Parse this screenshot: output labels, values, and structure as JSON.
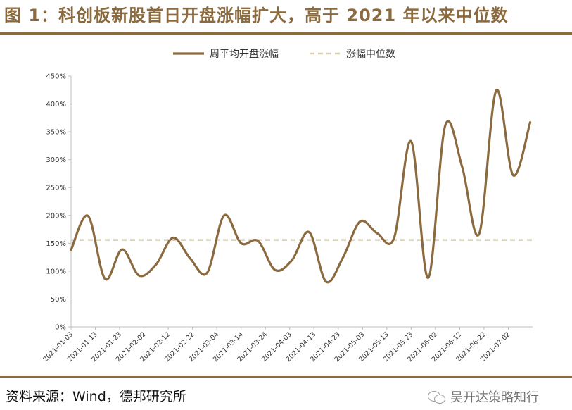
{
  "page": {
    "title": "图 1：科创板新股首日开盘涨幅扩大，高于 2021 年以来中位数",
    "source": "资料来源：Wind，德邦研究所",
    "watermark": "吴开达策略知行",
    "watermark_icon": "wechat-icon"
  },
  "colors": {
    "accent": "#8a6a3e",
    "series_line": "#8a6a3e",
    "median_line": "#d9cfae",
    "axis": "#bfbfbf"
  },
  "chart_data": {
    "type": "line",
    "title": "",
    "xlabel": "",
    "ylabel": "",
    "ylim": [
      0,
      450
    ],
    "y_unit": "%",
    "yticks": [
      0,
      50,
      100,
      150,
      200,
      250,
      300,
      350,
      400,
      450
    ],
    "ytick_labels": [
      "0%",
      "50%",
      "100%",
      "150%",
      "200%",
      "250%",
      "300%",
      "350%",
      "400%",
      "450%"
    ],
    "grid": false,
    "legend_position": "top-center",
    "x_tick_labels": [
      "2021-01-03",
      "2021-01-13",
      "2021-01-23",
      "2021-02-02",
      "2021-02-12",
      "2021-02-22",
      "2021-03-04",
      "2021-03-14",
      "2021-03-24",
      "2021-04-03",
      "2021-04-13",
      "2021-04-23",
      "2021-05-03",
      "2021-05-13",
      "2021-05-23",
      "2021-06-02",
      "2021-06-12",
      "2021-06-22",
      "2021-07-02"
    ],
    "x_range": [
      "2021-01-03",
      "2021-07-12"
    ],
    "series": [
      {
        "name": "周平均开盘涨幅",
        "style": "solid",
        "points": [
          {
            "x": "2021-01-03",
            "y": 138
          },
          {
            "x": "2021-01-10",
            "y": 199
          },
          {
            "x": "2021-01-17",
            "y": 86
          },
          {
            "x": "2021-01-24",
            "y": 139
          },
          {
            "x": "2021-01-31",
            "y": 92
          },
          {
            "x": "2021-02-07",
            "y": 112
          },
          {
            "x": "2021-02-14",
            "y": 160
          },
          {
            "x": "2021-02-21",
            "y": 123
          },
          {
            "x": "2021-02-28",
            "y": 97
          },
          {
            "x": "2021-03-07",
            "y": 200
          },
          {
            "x": "2021-03-14",
            "y": 150
          },
          {
            "x": "2021-03-21",
            "y": 154
          },
          {
            "x": "2021-03-28",
            "y": 102
          },
          {
            "x": "2021-04-04",
            "y": 120
          },
          {
            "x": "2021-04-11",
            "y": 170
          },
          {
            "x": "2021-04-18",
            "y": 81
          },
          {
            "x": "2021-04-25",
            "y": 125
          },
          {
            "x": "2021-05-02",
            "y": 189
          },
          {
            "x": "2021-05-09",
            "y": 168
          },
          {
            "x": "2021-05-16",
            "y": 160
          },
          {
            "x": "2021-05-23",
            "y": 333
          },
          {
            "x": "2021-05-30",
            "y": 88
          },
          {
            "x": "2021-06-06",
            "y": 361
          },
          {
            "x": "2021-06-13",
            "y": 287
          },
          {
            "x": "2021-06-20",
            "y": 167
          },
          {
            "x": "2021-06-27",
            "y": 424
          },
          {
            "x": "2021-07-04",
            "y": 272
          },
          {
            "x": "2021-07-11",
            "y": 367
          }
        ]
      },
      {
        "name": "涨幅中位数",
        "style": "dashed",
        "constant": 156
      }
    ]
  }
}
